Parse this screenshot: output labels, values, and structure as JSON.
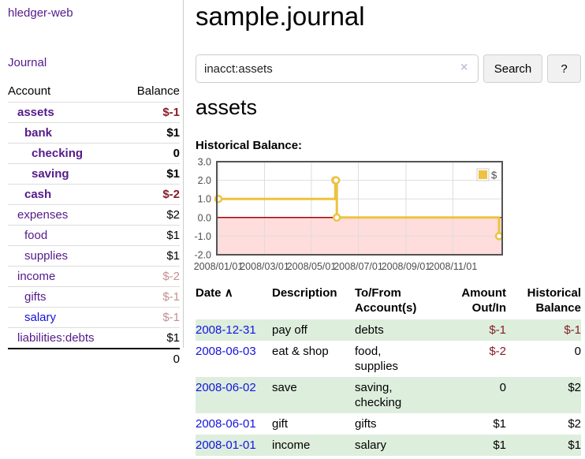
{
  "colors": {
    "purple_link": "#551a8b",
    "blue_link": "#1414dd",
    "negative": "#851d26",
    "negative_muted": "#c68f8f",
    "row_stripe": "#ddeedd",
    "chart_line": "#edc240",
    "chart_negative_bg": "#ffdddd",
    "chart_zero_line": "#aa0000",
    "chart_border": "#545454",
    "chart_grid": "#dddddd",
    "chart_text": "#4d4d4d"
  },
  "sidebar": {
    "brand": "hledger-web",
    "journal_link": "Journal",
    "accounts_table": {
      "headers": {
        "account": "Account",
        "balance": "Balance"
      },
      "rows": [
        {
          "name": "assets",
          "balance": "$-1",
          "depth": 1,
          "bold": true,
          "balance_class": "neg"
        },
        {
          "name": "bank",
          "balance": "$1",
          "depth": 2,
          "bold": true,
          "balance_class": ""
        },
        {
          "name": "checking",
          "balance": "0",
          "depth": 3,
          "bold": true,
          "balance_class": ""
        },
        {
          "name": "saving",
          "balance": "$1",
          "depth": 3,
          "bold": true,
          "balance_class": ""
        },
        {
          "name": "cash",
          "balance": "$-2",
          "depth": 2,
          "bold": true,
          "balance_class": "neg"
        },
        {
          "name": "expenses",
          "balance": "$2",
          "depth": 1,
          "bold": false,
          "balance_class": ""
        },
        {
          "name": "food",
          "balance": "$1",
          "depth": 2,
          "bold": false,
          "balance_class": ""
        },
        {
          "name": "supplies",
          "balance": "$1",
          "depth": 2,
          "bold": false,
          "balance_class": ""
        },
        {
          "name": "income",
          "balance": "$-2",
          "depth": 1,
          "bold": false,
          "balance_class": "negmuted"
        },
        {
          "name": "gifts",
          "balance": "$-1",
          "depth": 2,
          "bold": false,
          "balance_class": "negmuted"
        },
        {
          "name": "salary",
          "balance": "$-1",
          "depth": 2,
          "bold": false,
          "balance_class": "negmuted",
          "unvisited": true
        },
        {
          "name": "liabilities:debts",
          "balance": "$1",
          "depth": 1,
          "bold": false,
          "balance_class": ""
        }
      ],
      "total": "0"
    }
  },
  "main": {
    "title": "sample.journal",
    "search": {
      "value": "inacct:assets",
      "clear_icon": "×",
      "search_button": "Search",
      "help_button": "?"
    },
    "account_heading": "assets",
    "chart_heading": "Historical Balance:"
  },
  "chart_data": {
    "type": "line",
    "step": true,
    "title": "Historical Balance:",
    "xrange": [
      "2008-01-01",
      "2008-12-31"
    ],
    "ylim": [
      -2,
      3
    ],
    "yticks": [
      3.0,
      2.0,
      1.0,
      0.0,
      -1.0,
      -2.0
    ],
    "xticks": [
      "2008/01/01",
      "2008/03/01",
      "2008/05/01",
      "2008/07/01",
      "2008/09/01",
      "2008/11/01"
    ],
    "legend_position": "top-right",
    "grid": true,
    "series": [
      {
        "name": "$",
        "color": "#edc240",
        "points": [
          [
            "2008-01-01",
            1
          ],
          [
            "2008-06-01",
            2
          ],
          [
            "2008-06-02",
            2
          ],
          [
            "2008-06-03",
            0
          ],
          [
            "2008-12-31",
            -1
          ]
        ]
      }
    ]
  },
  "register": {
    "sort_indicator": "∧",
    "headers": {
      "date": "Date",
      "description": "Description",
      "accounts": "To/From Account(s)",
      "amount": "Amount Out/In",
      "balance": "Historical Balance"
    },
    "rows": [
      {
        "date": "2008-12-31",
        "description": "pay off",
        "accounts": "debts",
        "amount": "$-1",
        "balance": "$-1"
      },
      {
        "date": "2008-06-03",
        "description": "eat & shop",
        "accounts": "food, supplies",
        "amount": "$-2",
        "balance": "0"
      },
      {
        "date": "2008-06-02",
        "description": "save",
        "accounts": "saving, checking",
        "amount": "0",
        "balance": "$2"
      },
      {
        "date": "2008-06-01",
        "description": "gift",
        "accounts": "gifts",
        "amount": "$1",
        "balance": "$2"
      },
      {
        "date": "2008-01-01",
        "description": "income",
        "accounts": "salary",
        "amount": "$1",
        "balance": "$1"
      }
    ]
  }
}
